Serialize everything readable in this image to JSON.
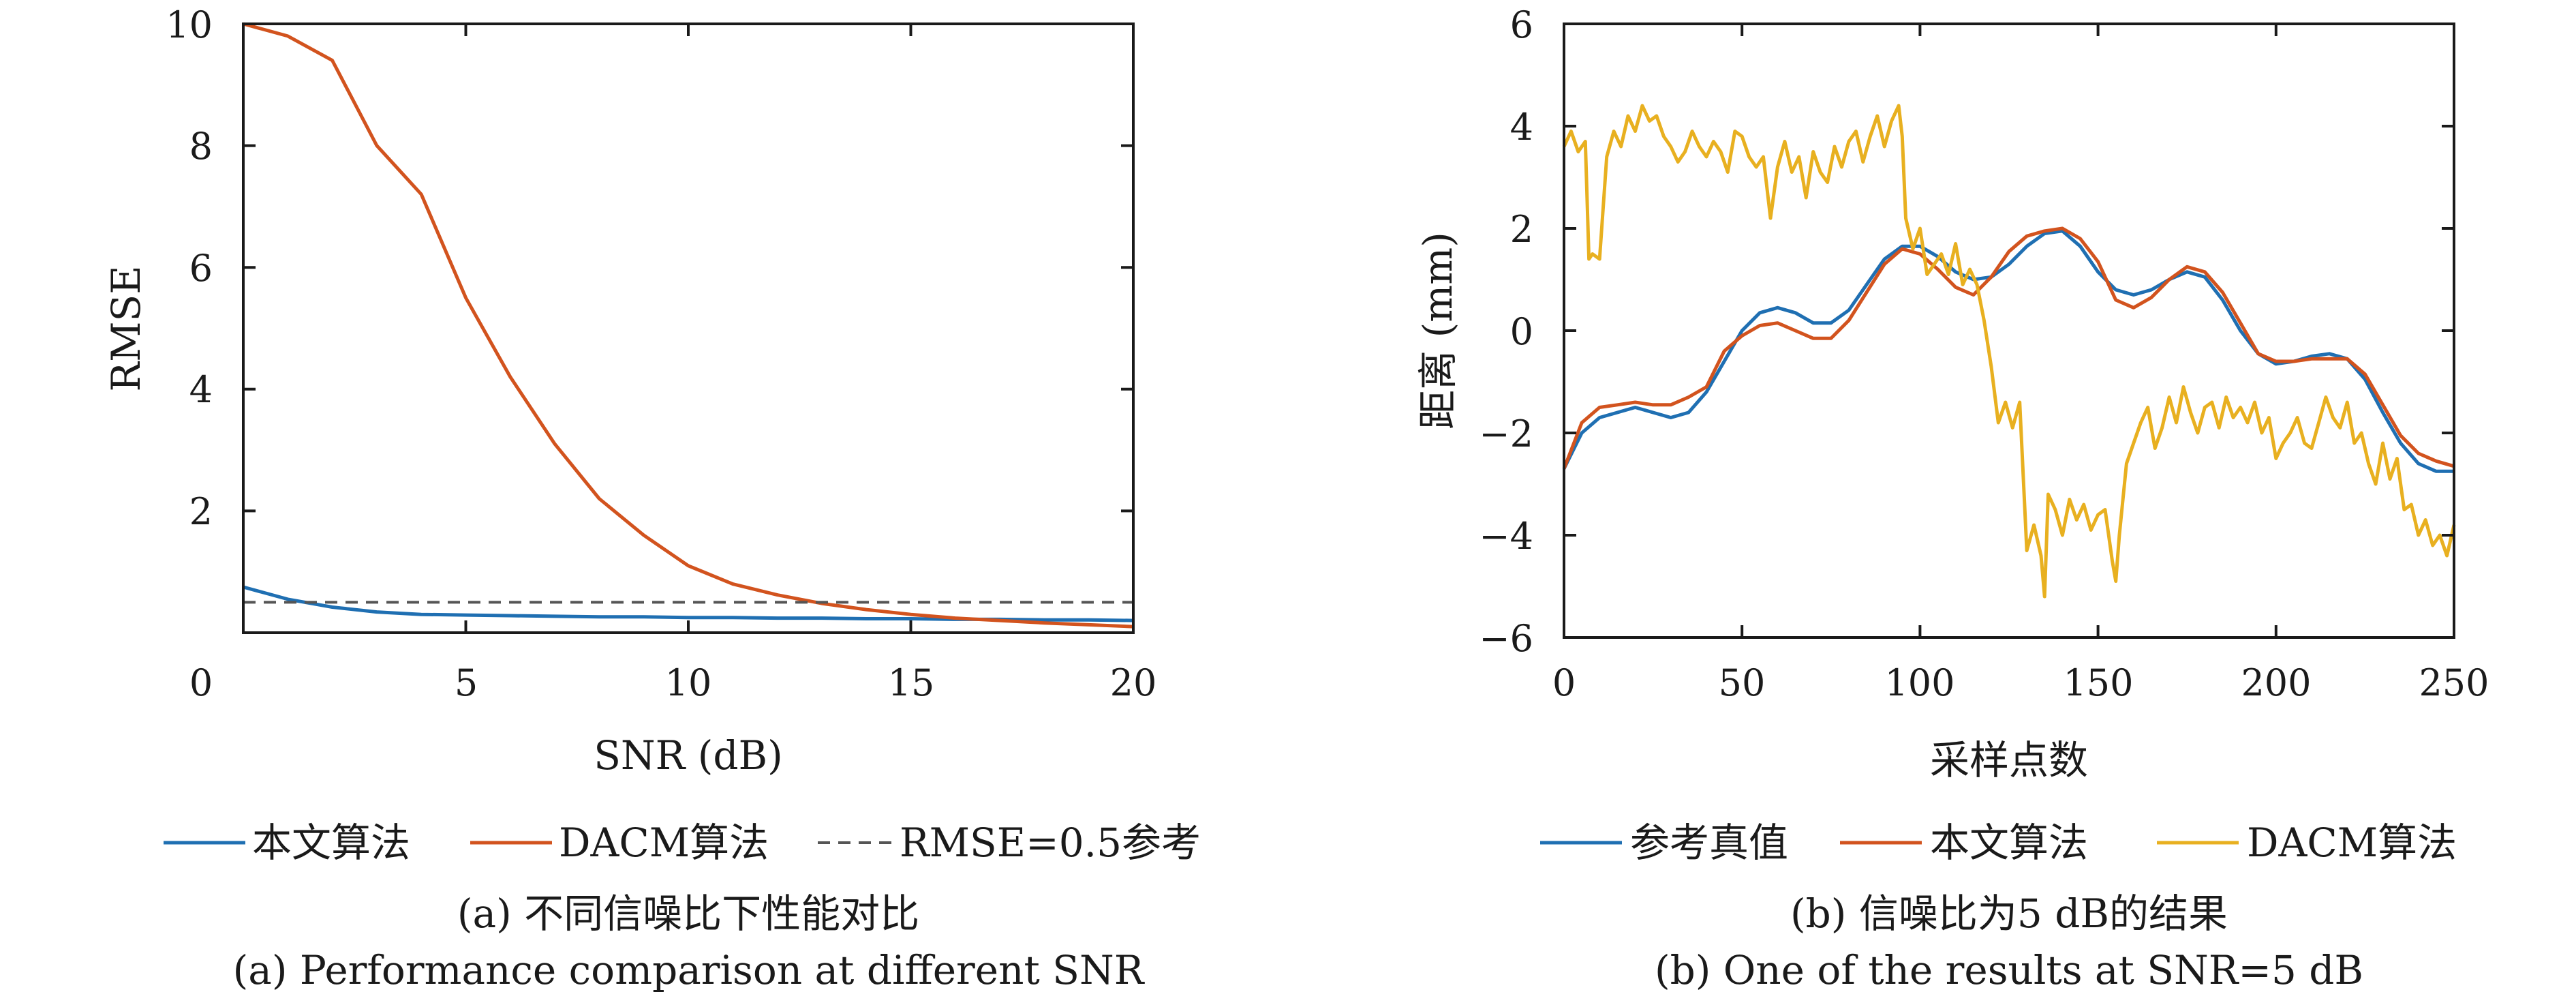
{
  "colors": {
    "blue": "#1f6fb2",
    "orange": "#d2531e",
    "yellow": "#e8b020",
    "reference": "#555555",
    "axis": "#1a1a1a"
  },
  "chart_data": [
    {
      "type": "line",
      "xlabel": "SNR (dB)",
      "ylabel": "RMSE",
      "xlim": [
        0,
        20
      ],
      "ylim": [
        0,
        10
      ],
      "xticks": [
        "0",
        "5",
        "10",
        "15",
        "20"
      ],
      "yticks": [
        "2",
        "4",
        "6",
        "8",
        "10"
      ],
      "grid": false,
      "legend_position": "bottom",
      "series": [
        {
          "name": "本文算法",
          "color": "#1f6fb2",
          "style": "solid",
          "x": [
            0,
            1,
            2,
            3,
            4,
            5,
            6,
            7,
            8,
            9,
            10,
            11,
            12,
            13,
            14,
            15,
            16,
            17,
            18,
            19,
            20
          ],
          "y": [
            0.75,
            0.55,
            0.42,
            0.34,
            0.3,
            0.29,
            0.28,
            0.27,
            0.26,
            0.26,
            0.25,
            0.25,
            0.24,
            0.24,
            0.23,
            0.23,
            0.22,
            0.22,
            0.21,
            0.21,
            0.2
          ]
        },
        {
          "name": "DACM算法",
          "color": "#d2531e",
          "style": "solid",
          "x": [
            0,
            1,
            2,
            3,
            4,
            5,
            6,
            7,
            8,
            9,
            10,
            11,
            12,
            13,
            14,
            15,
            16,
            17,
            18,
            19,
            20
          ],
          "y": [
            10,
            9.8,
            9.4,
            8.0,
            7.2,
            5.5,
            4.2,
            3.1,
            2.2,
            1.6,
            1.1,
            0.8,
            0.62,
            0.48,
            0.38,
            0.3,
            0.24,
            0.2,
            0.16,
            0.13,
            0.1
          ]
        },
        {
          "name": "RMSE=0.5参考",
          "color": "#555555",
          "style": "dashed",
          "x": [
            0,
            20
          ],
          "y": [
            0.5,
            0.5
          ]
        }
      ],
      "caption_cn": "(a) 不同信噪比下性能对比",
      "caption_en": "(a) Performance comparison at different SNR"
    },
    {
      "type": "line",
      "xlabel": "采样点数",
      "ylabel": "距离 (mm)",
      "xlim": [
        0,
        250
      ],
      "ylim": [
        -6,
        6
      ],
      "xticks": [
        "0",
        "50",
        "100",
        "150",
        "200",
        "250"
      ],
      "yticks": [
        "6",
        "4",
        "2",
        "0",
        "−2",
        "−4",
        "−6"
      ],
      "grid": false,
      "legend_position": "bottom",
      "series": [
        {
          "name": "参考真值",
          "color": "#1f6fb2",
          "style": "solid",
          "x": [
            0,
            5,
            10,
            15,
            20,
            25,
            30,
            35,
            40,
            45,
            50,
            55,
            60,
            65,
            70,
            75,
            80,
            85,
            90,
            95,
            100,
            105,
            110,
            115,
            120,
            125,
            130,
            135,
            140,
            145,
            150,
            155,
            160,
            165,
            170,
            175,
            180,
            185,
            190,
            195,
            200,
            205,
            210,
            215,
            220,
            225,
            230,
            235,
            240,
            245,
            250
          ],
          "y": [
            -2.7,
            -2.0,
            -1.7,
            -1.6,
            -1.5,
            -1.6,
            -1.7,
            -1.6,
            -1.2,
            -0.6,
            0.0,
            0.35,
            0.45,
            0.35,
            0.15,
            0.15,
            0.4,
            0.9,
            1.4,
            1.65,
            1.65,
            1.45,
            1.15,
            1.0,
            1.05,
            1.3,
            1.65,
            1.9,
            1.95,
            1.65,
            1.15,
            0.8,
            0.7,
            0.8,
            1.0,
            1.15,
            1.05,
            0.6,
            0.0,
            -0.45,
            -0.65,
            -0.6,
            -0.5,
            -0.45,
            -0.55,
            -0.95,
            -1.6,
            -2.2,
            -2.6,
            -2.75,
            -2.75
          ]
        },
        {
          "name": "本文算法",
          "color": "#d2531e",
          "style": "solid",
          "x": [
            0,
            5,
            10,
            15,
            20,
            25,
            30,
            35,
            40,
            45,
            50,
            55,
            60,
            65,
            70,
            75,
            80,
            85,
            90,
            95,
            100,
            105,
            110,
            115,
            120,
            125,
            130,
            135,
            140,
            145,
            150,
            155,
            160,
            165,
            170,
            175,
            180,
            185,
            190,
            195,
            200,
            205,
            210,
            215,
            220,
            225,
            230,
            235,
            240,
            245,
            250
          ],
          "y": [
            -2.7,
            -1.8,
            -1.5,
            -1.45,
            -1.4,
            -1.45,
            -1.45,
            -1.3,
            -1.1,
            -0.4,
            -0.1,
            0.1,
            0.15,
            0.0,
            -0.15,
            -0.15,
            0.2,
            0.75,
            1.3,
            1.6,
            1.5,
            1.2,
            0.85,
            0.7,
            1.05,
            1.55,
            1.85,
            1.95,
            2.0,
            1.8,
            1.35,
            0.6,
            0.45,
            0.65,
            1.0,
            1.25,
            1.15,
            0.75,
            0.15,
            -0.45,
            -0.6,
            -0.6,
            -0.55,
            -0.55,
            -0.55,
            -0.85,
            -1.45,
            -2.05,
            -2.4,
            -2.55,
            -2.65
          ]
        },
        {
          "name": "DACM算法",
          "color": "#e8b020",
          "style": "solid",
          "x": [
            0,
            2,
            4,
            6,
            7,
            8,
            10,
            12,
            14,
            16,
            18,
            20,
            22,
            24,
            26,
            28,
            30,
            32,
            34,
            36,
            38,
            40,
            42,
            44,
            46,
            48,
            50,
            52,
            54,
            56,
            58,
            60,
            62,
            64,
            66,
            68,
            70,
            72,
            74,
            76,
            78,
            80,
            82,
            84,
            86,
            88,
            90,
            92,
            94,
            95,
            96,
            98,
            100,
            102,
            104,
            106,
            108,
            110,
            112,
            114,
            116,
            118,
            120,
            122,
            124,
            126,
            128,
            130,
            132,
            134,
            135,
            136,
            138,
            140,
            142,
            144,
            146,
            148,
            150,
            152,
            154,
            155,
            156,
            158,
            160,
            162,
            164,
            166,
            168,
            170,
            172,
            174,
            176,
            178,
            180,
            182,
            184,
            186,
            188,
            190,
            192,
            194,
            196,
            198,
            200,
            202,
            204,
            206,
            208,
            210,
            212,
            214,
            216,
            218,
            220,
            222,
            224,
            226,
            228,
            230,
            232,
            234,
            236,
            238,
            240,
            242,
            244,
            246,
            248,
            250
          ],
          "y": [
            3.6,
            3.9,
            3.5,
            3.7,
            1.4,
            1.5,
            1.4,
            3.4,
            3.9,
            3.6,
            4.2,
            3.9,
            4.4,
            4.1,
            4.2,
            3.8,
            3.6,
            3.3,
            3.5,
            3.9,
            3.6,
            3.4,
            3.7,
            3.5,
            3.1,
            3.9,
            3.8,
            3.4,
            3.2,
            3.4,
            2.2,
            3.2,
            3.7,
            3.1,
            3.4,
            2.6,
            3.5,
            3.1,
            2.9,
            3.6,
            3.2,
            3.7,
            3.9,
            3.3,
            3.8,
            4.2,
            3.6,
            4.1,
            4.4,
            3.8,
            2.2,
            1.6,
            2.0,
            1.1,
            1.3,
            1.5,
            1.1,
            1.7,
            0.9,
            1.2,
            0.9,
            0.2,
            -0.7,
            -1.8,
            -1.4,
            -1.9,
            -1.4,
            -4.3,
            -3.8,
            -4.4,
            -5.2,
            -3.2,
            -3.5,
            -4.0,
            -3.3,
            -3.7,
            -3.4,
            -3.9,
            -3.6,
            -3.5,
            -4.5,
            -4.9,
            -4.0,
            -2.6,
            -2.2,
            -1.8,
            -1.5,
            -2.3,
            -1.9,
            -1.3,
            -1.8,
            -1.1,
            -1.6,
            -2.0,
            -1.5,
            -1.4,
            -1.9,
            -1.3,
            -1.7,
            -1.5,
            -1.8,
            -1.4,
            -2.0,
            -1.7,
            -2.5,
            -2.2,
            -2.0,
            -1.7,
            -2.2,
            -2.3,
            -1.8,
            -1.3,
            -1.7,
            -1.9,
            -1.4,
            -2.2,
            -2.0,
            -2.6,
            -3.0,
            -2.2,
            -2.9,
            -2.5,
            -3.5,
            -3.4,
            -4.0,
            -3.7,
            -4.2,
            -4.0,
            -4.4,
            -3.8
          ]
        }
      ],
      "caption_cn": "(b) 信噪比为5 dB的结果",
      "caption_en": "(b) One of the results at SNR=5 dB"
    }
  ]
}
